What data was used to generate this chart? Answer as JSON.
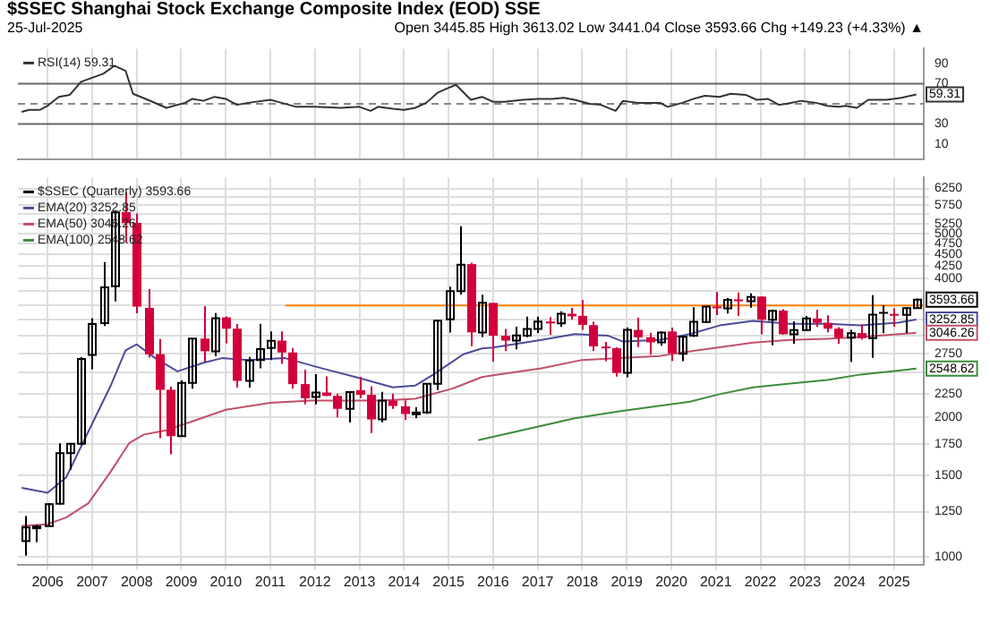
{
  "chart_data": [
    {
      "type": "line",
      "title": "$SSEC Shanghai Stock Exchange Composite Index (EOD) SSE",
      "subtitle": "25-Jul-2025",
      "annotations": [
        "Open 3445.85 High 3613.02 Low 3441.04 Close 3593.66 Chg +149.23 (+4.33%) ▲"
      ],
      "xlim": [
        "2005-05",
        "2025-09"
      ],
      "xticks": [
        "2006",
        "2007",
        "2008",
        "2009",
        "2010",
        "2011",
        "2012",
        "2013",
        "2014",
        "2015",
        "2016",
        "2017",
        "2018",
        "2019",
        "2020",
        "2021",
        "2022",
        "2023",
        "2024",
        "2025"
      ],
      "ylim": [
        -5,
        105
      ],
      "yticks": [
        10,
        30,
        {
          "value": 50,
          "label": null
        },
        70,
        90
      ],
      "tick_labels": "y",
      "grid": "x",
      "legend": "top left",
      "ref_lines": [
        {
          "axis": "y",
          "value": 70,
          "color": "#666666",
          "line_style": "solid"
        },
        {
          "axis": "y",
          "value": 30,
          "color": "#666666",
          "line_style": "solid"
        },
        {
          "axis": "y",
          "value": 50,
          "color": "#888888",
          "line_style": "dashed"
        }
      ],
      "series": [
        {
          "name": "RSI(14) 59.31",
          "color": "#333333",
          "x": [
            "2005-06",
            "2005-08",
            "2005-11",
            "2006-01",
            "2006-04",
            "2006-07",
            "2006-10",
            "2007-04",
            "2007-07",
            "2007-10",
            "2007-12",
            "2008-04",
            "2008-09",
            "2009-02",
            "2009-04",
            "2009-07",
            "2009-10",
            "2010-01",
            "2010-04",
            "2010-07",
            "2011-01",
            "2011-04",
            "2011-08",
            "2012-01",
            "2012-08",
            "2013-01",
            "2013-04",
            "2013-06",
            "2013-10",
            "2014-01",
            "2014-04",
            "2014-07",
            "2014-10",
            "2015-01",
            "2015-03",
            "2015-07",
            "2015-10",
            "2016-01",
            "2016-04",
            "2016-09",
            "2017-01",
            "2017-05",
            "2017-08",
            "2017-11",
            "2018-03",
            "2018-06",
            "2018-10",
            "2018-12",
            "2019-04",
            "2019-07",
            "2019-10",
            "2019-12",
            "2020-04",
            "2020-07",
            "2020-10",
            "2021-02",
            "2021-05",
            "2021-09",
            "2021-12",
            "2022-03",
            "2022-06",
            "2022-08",
            "2022-12",
            "2023-04",
            "2023-07",
            "2023-10",
            "2023-12",
            "2024-03",
            "2024-06",
            "2024-11",
            "2025-03",
            "2025-07"
          ],
          "values": [
            42,
            44,
            44,
            48,
            57,
            59,
            72,
            80,
            88,
            83,
            60,
            54,
            46,
            51,
            55,
            53,
            57,
            55,
            49,
            51,
            54,
            51,
            47,
            47,
            46,
            47,
            43,
            47,
            45,
            44,
            46,
            51,
            61,
            66,
            69,
            54,
            57,
            52,
            52,
            54,
            55,
            55,
            56,
            54,
            50,
            49,
            43,
            53,
            51,
            51,
            51,
            47,
            51,
            55,
            58,
            57,
            60,
            59,
            54,
            55,
            49,
            50,
            53,
            51,
            48,
            47,
            48,
            46,
            54,
            54,
            56,
            59.31
          ],
          "value_labels": [
            null,
            null,
            null,
            null,
            null,
            null,
            null,
            null,
            null,
            null,
            null,
            null,
            null,
            null,
            null,
            null,
            null,
            null,
            null,
            null,
            null,
            null,
            null,
            null,
            null,
            null,
            null,
            null,
            null,
            null,
            null,
            null,
            null,
            null,
            null,
            null,
            null,
            null,
            null,
            null,
            null,
            null,
            null,
            null,
            null,
            null,
            null,
            null,
            null,
            null,
            null,
            null,
            null,
            null,
            null,
            null,
            null,
            null,
            null,
            null,
            null,
            null,
            null,
            null,
            null,
            null,
            null,
            null,
            null,
            null,
            null,
            "59.31"
          ]
        }
      ]
    },
    {
      "type": "candlestick",
      "log": "y",
      "xlim": [
        "2005-05",
        "2025-09"
      ],
      "xticks": [
        "2006",
        "2007",
        "2008",
        "2009",
        "2010",
        "2011",
        "2012",
        "2013",
        "2014",
        "2015",
        "2016",
        "2017",
        "2018",
        "2019",
        "2020",
        "2021",
        "2022",
        "2023",
        "2024",
        "2025"
      ],
      "ylim": [
        960,
        6600
      ],
      "yticks": [
        1000,
        1250,
        1500,
        1750,
        2000,
        2250,
        {
          "value": 2500,
          "label": null
        },
        2750,
        {
          "value": 3000,
          "label": null
        },
        {
          "value": 3250,
          "label": null
        },
        {
          "value": 3500,
          "label": null
        },
        {
          "value": 3750,
          "label": null
        },
        4000,
        4250,
        4500,
        4750,
        5000,
        5250,
        {
          "value": 5500,
          "label": null
        },
        5750,
        {
          "value": 6000,
          "label": null
        },
        6250
      ],
      "grid": true,
      "legend": "top left",
      "series": [
        {
          "name": "$SSEC (Quarterly) 3593.66",
          "color": "#000000",
          "x": [
            "2005-07",
            "2005-10",
            "2006-01",
            "2006-04",
            "2006-07",
            "2006-10",
            "2007-01",
            "2007-04",
            "2007-07",
            "2007-10",
            "2008-01",
            "2008-04",
            "2008-07",
            "2008-10",
            "2009-01",
            "2009-04",
            "2009-07",
            "2009-10",
            "2010-01",
            "2010-04",
            "2010-07",
            "2010-10",
            "2011-01",
            "2011-04",
            "2011-07",
            "2011-10",
            "2012-01",
            "2012-04",
            "2012-07",
            "2012-10",
            "2013-01",
            "2013-04",
            "2013-07",
            "2013-10",
            "2014-01",
            "2014-04",
            "2014-07",
            "2014-10",
            "2015-01",
            "2015-04",
            "2015-07",
            "2015-10",
            "2016-01",
            "2016-04",
            "2016-07",
            "2016-10",
            "2017-01",
            "2017-04",
            "2017-07",
            "2017-10",
            "2018-01",
            "2018-04",
            "2018-07",
            "2018-10",
            "2019-01",
            "2019-04",
            "2019-07",
            "2019-10",
            "2020-01",
            "2020-04",
            "2020-07",
            "2020-10",
            "2021-01",
            "2021-04",
            "2021-07",
            "2021-10",
            "2022-01",
            "2022-04",
            "2022-07",
            "2022-10",
            "2023-01",
            "2023-04",
            "2023-07",
            "2023-10",
            "2024-01",
            "2024-04",
            "2024-07",
            "2024-10",
            "2025-01",
            "2025-04",
            "2025-07"
          ],
          "ohlc": [
            [
              1080,
              1223,
              1004,
              1155
            ],
            [
              1155,
              1170,
              1074,
              1161
            ],
            [
              1163,
              1305,
              1161,
              1298
            ],
            [
              1300,
              1757,
              1295,
              1672
            ],
            [
              1672,
              1756,
              1541,
              1752
            ],
            [
              1752,
              2698,
              1740,
              2675
            ],
            [
              2728,
              3277,
              2541,
              3183
            ],
            [
              3196,
              4335,
              3150,
              3820
            ],
            [
              3840,
              5559,
              3563,
              5552
            ],
            [
              5560,
              6124,
              4778,
              5261
            ],
            [
              5265,
              5522,
              3358,
              3472
            ],
            [
              3450,
              3786,
              2693,
              2736
            ],
            [
              2740,
              2952,
              1802,
              2293
            ],
            [
              2294,
              2333,
              1664,
              1820
            ],
            [
              1820,
              2402,
              1814,
              2373
            ],
            [
              2373,
              2966,
              2306,
              2959
            ],
            [
              2960,
              3478,
              2639,
              2779
            ],
            [
              2779,
              3361,
              2712,
              3277
            ],
            [
              3289,
              3306,
              2890,
              3109
            ],
            [
              3110,
              3181,
              2319,
              2398
            ],
            [
              2398,
              2701,
              2319,
              2655
            ],
            [
              2660,
              3186,
              2551,
              2808
            ],
            [
              2825,
              3068,
              2661,
              2928
            ],
            [
              2930,
              3067,
              2610,
              2762
            ],
            [
              2762,
              2826,
              2307,
              2359
            ],
            [
              2360,
              2536,
              2134,
              2199
            ],
            [
              2212,
              2478,
              2132,
              2263
            ],
            [
              2263,
              2453,
              2222,
              2225
            ],
            [
              2225,
              2250,
              1999,
              2086
            ],
            [
              2086,
              2276,
              1949,
              2269
            ],
            [
              2289,
              2444,
              2201,
              2237
            ],
            [
              2237,
              2334,
              1849,
              1979
            ],
            [
              1979,
              2270,
              1952,
              2174
            ],
            [
              2174,
              2250,
              2087,
              2116
            ],
            [
              2112,
              2177,
              1974,
              2033
            ],
            [
              2033,
              2103,
              1991,
              2048
            ],
            [
              2048,
              2369,
              2032,
              2364
            ],
            [
              2364,
              3239,
              2290,
              3235
            ],
            [
              3258,
              3835,
              3049,
              3748
            ],
            [
              3748,
              5178,
              3686,
              4277
            ],
            [
              4289,
              4317,
              2850,
              3053
            ],
            [
              3052,
              3684,
              2983,
              3539
            ],
            [
              3536,
              3539,
              2638,
              3003
            ],
            [
              3001,
              3104,
              2780,
              2930
            ],
            [
              2931,
              3140,
              2807,
              3005
            ],
            [
              3004,
              3301,
              2981,
              3104
            ],
            [
              3105,
              3301,
              3044,
              3223
            ],
            [
              3223,
              3295,
              3016,
              3192
            ],
            [
              3192,
              3392,
              3138,
              3349
            ],
            [
              3349,
              3450,
              3254,
              3307
            ],
            [
              3314,
              3587,
              3092,
              3169
            ],
            [
              3165,
              3220,
              2782,
              2847
            ],
            [
              2845,
              2910,
              2644,
              2821
            ],
            [
              2821,
              2835,
              2449,
              2494
            ],
            [
              2497,
              3129,
              2440,
              3091
            ],
            [
              3091,
              3288,
              2838,
              2979
            ],
            [
              2979,
              3048,
              2733,
              2905
            ],
            [
              2905,
              3069,
              2857,
              3050
            ],
            [
              3066,
              3127,
              2647,
              2750
            ],
            [
              2743,
              3001,
              2646,
              2985
            ],
            [
              3003,
              3458,
              2984,
              3218
            ],
            [
              3214,
              3474,
              3199,
              3473
            ],
            [
              3474,
              3731,
              3328,
              3441
            ],
            [
              3442,
              3624,
              3355,
              3591
            ],
            [
              3597,
              3723,
              3312,
              3568
            ],
            [
              3566,
              3709,
              3453,
              3640
            ],
            [
              3650,
              3651,
              3023,
              3252
            ],
            [
              3252,
              3423,
              2863,
              3399
            ],
            [
              3404,
              3425,
              3021,
              3024
            ],
            [
              3024,
              3226,
              2886,
              3089
            ],
            [
              3087,
              3313,
              3073,
              3273
            ],
            [
              3272,
              3418,
              3137,
              3202
            ],
            [
              3202,
              3322,
              3054,
              3110
            ],
            [
              3110,
              3132,
              2882,
              2975
            ],
            [
              2972,
              3092,
              2635,
              3041
            ],
            [
              3042,
              3174,
              2947,
              2967
            ],
            [
              2966,
              3674,
              2689,
              3336
            ],
            [
              3380,
              3494,
              3040,
              3352
            ],
            [
              3347,
              3439,
              3141,
              3336
            ],
            [
              3333,
              3458,
              3040,
              3444
            ],
            [
              3445.85,
              3613.02,
              3441.04,
              3593.66
            ]
          ],
          "colors": [
            "#000000",
            "#000000",
            "#000000",
            "#000000",
            "#000000",
            "#000000",
            "#000000",
            "#000000",
            "#000000",
            "#d2003c",
            "#d2003c",
            "#d2003c",
            "#d2003c",
            "#d2003c",
            "#000000",
            "#000000",
            "#d2003c",
            "#000000",
            "#d2003c",
            "#d2003c",
            "#000000",
            "#000000",
            "#000000",
            "#d2003c",
            "#d2003c",
            "#d2003c",
            "#000000",
            "#d2003c",
            "#d2003c",
            "#000000",
            "#d2003c",
            "#d2003c",
            "#000000",
            "#d2003c",
            "#d2003c",
            "#000000",
            "#000000",
            "#000000",
            "#000000",
            "#000000",
            "#d2003c",
            "#000000",
            "#d2003c",
            "#d2003c",
            "#000000",
            "#000000",
            "#000000",
            "#d2003c",
            "#000000",
            "#d2003c",
            "#d2003c",
            "#d2003c",
            "#d2003c",
            "#d2003c",
            "#000000",
            "#d2003c",
            "#d2003c",
            "#000000",
            "#d2003c",
            "#000000",
            "#000000",
            "#000000",
            "#d2003c",
            "#000000",
            "#d2003c",
            "#000000",
            "#d2003c",
            "#000000",
            "#d2003c",
            "#000000",
            "#000000",
            "#d2003c",
            "#d2003c",
            "#d2003c",
            "#000000",
            "#d2003c",
            "#000000",
            "#000000",
            "#d2003c",
            "#000000",
            "#000000"
          ],
          "value_labels": [
            null,
            null,
            null,
            null,
            null,
            null,
            null,
            null,
            null,
            null,
            null,
            null,
            null,
            null,
            null,
            null,
            null,
            null,
            null,
            null,
            null,
            null,
            null,
            null,
            null,
            null,
            null,
            null,
            null,
            null,
            null,
            null,
            null,
            null,
            null,
            null,
            null,
            null,
            null,
            null,
            null,
            null,
            null,
            null,
            null,
            null,
            null,
            null,
            null,
            null,
            null,
            null,
            null,
            null,
            null,
            null,
            null,
            null,
            null,
            null,
            null,
            null,
            null,
            null,
            null,
            null,
            null,
            null,
            null,
            null,
            null,
            null,
            null,
            null,
            null,
            null,
            null,
            null,
            null,
            null,
            "3593.66"
          ]
        },
        {
          "type": "line",
          "name": "EMA(20) 3252.85",
          "color": "#4b4b9b",
          "x": [
            "2005-06",
            "2006-01",
            "2006-06",
            "2006-12",
            "2007-06",
            "2007-10",
            "2008-01",
            "2008-06",
            "2008-12",
            "2009-07",
            "2009-12",
            "2010-07",
            "2011-05",
            "2012-03",
            "2012-12",
            "2013-10",
            "2014-04",
            "2014-09",
            "2015-05",
            "2015-10",
            "2016-01",
            "2017-02",
            "2017-11",
            "2018-08",
            "2018-12",
            "2019-10",
            "2020-06",
            "2021-02",
            "2021-11",
            "2022-09",
            "2023-07",
            "2024-04",
            "2025-02",
            "2025-07"
          ],
          "values": [
            1408,
            1373,
            1483,
            1864,
            2342,
            2793,
            2876,
            2685,
            2514,
            2624,
            2685,
            2661,
            2685,
            2551,
            2443,
            2322,
            2342,
            2478,
            2738,
            2818,
            2831,
            2939,
            3027,
            3002,
            2916,
            2939,
            3027,
            3160,
            3232,
            3187,
            3187,
            3160,
            3204,
            3252.85
          ],
          "value_labels": [
            null,
            null,
            null,
            null,
            null,
            null,
            null,
            null,
            null,
            null,
            null,
            null,
            null,
            null,
            null,
            null,
            null,
            null,
            null,
            null,
            null,
            null,
            null,
            null,
            null,
            null,
            null,
            null,
            null,
            null,
            null,
            null,
            null,
            "3252.85"
          ]
        },
        {
          "type": "line",
          "name": "EMA(50) 3046.26",
          "color": "#c0506a",
          "x": [
            "2005-06",
            "2006-01",
            "2006-06",
            "2006-12",
            "2007-06",
            "2007-11",
            "2008-03",
            "2008-09",
            "2009-05",
            "2010-01",
            "2011-01",
            "2011-12",
            "2013-07",
            "2014-04",
            "2015-02",
            "2015-10",
            "2016-01",
            "2017-02",
            "2018-01",
            "2018-11",
            "2019-10",
            "2020-06",
            "2021-02",
            "2021-11",
            "2022-09",
            "2023-07",
            "2024-04",
            "2025-07"
          ],
          "values": [
            1164,
            1174,
            1214,
            1304,
            1526,
            1759,
            1836,
            1875,
            1973,
            2077,
            2149,
            2174,
            2174,
            2193,
            2307,
            2443,
            2465,
            2551,
            2661,
            2685,
            2715,
            2779,
            2834,
            2900,
            2939,
            2958,
            2984,
            3046.26
          ],
          "value_labels": [
            null,
            null,
            null,
            null,
            null,
            null,
            null,
            null,
            null,
            null,
            null,
            null,
            null,
            null,
            null,
            null,
            null,
            null,
            null,
            null,
            null,
            null,
            null,
            null,
            null,
            null,
            null,
            "3046.26"
          ]
        },
        {
          "type": "line",
          "name": "EMA(100) 2548.62",
          "color": "#3c8c3c",
          "x": [
            "2015-09",
            "2017-02",
            "2017-11",
            "2018-11",
            "2019-10",
            "2020-06",
            "2021-02",
            "2021-11",
            "2022-09",
            "2023-07",
            "2024-04",
            "2025-07"
          ],
          "values": [
            1785,
            1916,
            1991,
            2060,
            2118,
            2161,
            2244,
            2322,
            2367,
            2409,
            2475,
            2548.62
          ],
          "value_labels": [
            null,
            null,
            null,
            null,
            null,
            null,
            null,
            null,
            null,
            null,
            null,
            "2548.62"
          ]
        },
        {
          "type": "line",
          "color": "#ff7f00",
          "x": [
            "2011-05",
            "2025-09"
          ],
          "values": [
            3490,
            3490
          ]
        }
      ]
    }
  ]
}
